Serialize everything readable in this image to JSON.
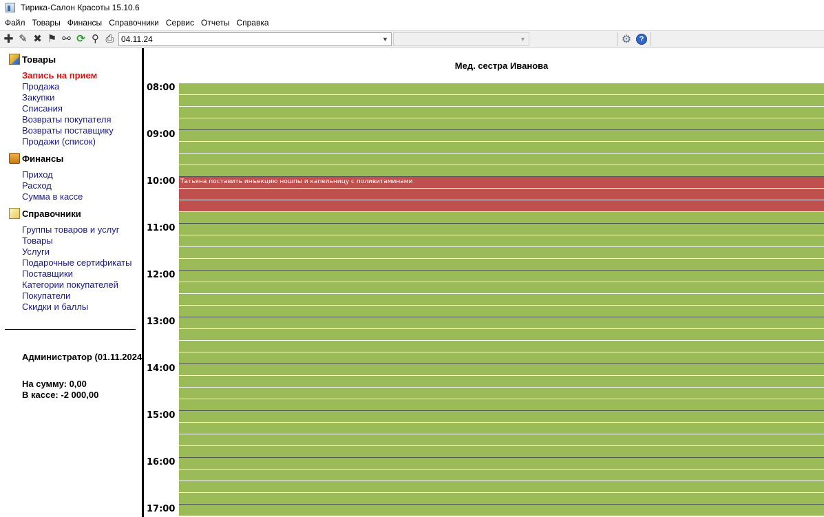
{
  "window": {
    "title": "Тирика-Салон Красоты 15.10.6"
  },
  "menu": [
    "Файл",
    "Товары",
    "Финансы",
    "Справочники",
    "Сервис",
    "Отчеты",
    "Справка"
  ],
  "toolbar": {
    "date_value": "04.11.24",
    "second_combo_value": "",
    "icons": [
      "plus-icon",
      "pencil-icon",
      "delete-icon",
      "flag-icon",
      "link-icon",
      "refresh-icon",
      "search-icon",
      "print-icon",
      "gear-icon",
      "help-icon"
    ]
  },
  "sidebar": {
    "groups": [
      {
        "title": "Товары",
        "icon": "box-icon",
        "items": [
          "Запись на прием",
          "Продажа",
          "Закупки",
          "Списания",
          "Возвраты покупателя",
          "Возвраты поставщику",
          "Продажи (список)"
        ],
        "active_index": 0
      },
      {
        "title": "Финансы",
        "icon": "briefcase-icon",
        "items": [
          "Приход",
          "Расход",
          "Сумма в кассе"
        ]
      },
      {
        "title": "Справочники",
        "icon": "books-icon",
        "items": [
          "Группы товаров и услуг",
          "Товары",
          "Услуги",
          "Подарочные сертификаты",
          "Поставщики",
          "Категории покупателей",
          "Покупатели",
          "Скидки и баллы"
        ]
      }
    ],
    "user": "Администратор (01.11.2024",
    "sum_line": "На сумму: 0,00",
    "cash_line": "В кассе: -2 000,00"
  },
  "schedule": {
    "column_title": "Мед. сестра Иванова",
    "hours": [
      "08:00",
      "09:00",
      "10:00",
      "11:00",
      "12:00",
      "13:00",
      "14:00",
      "15:00",
      "16:00",
      "17:00"
    ],
    "slot_color": "#9bbb59",
    "booked_color": "#c0504d",
    "appointment": {
      "text": "Татьяна поставить инъекцию ношпы и  капельницу с поливитаминами",
      "start": "10:00",
      "end": "10:45"
    }
  }
}
